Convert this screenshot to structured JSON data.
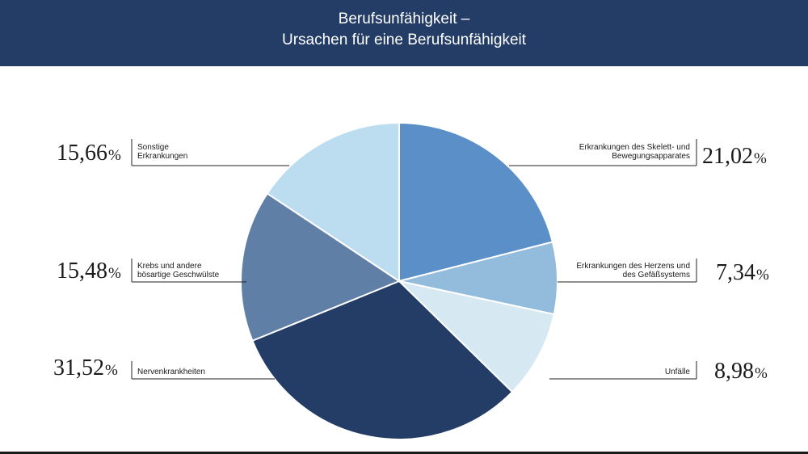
{
  "header": {
    "title_line1": "Berufsunfähigkeit –",
    "title_line2": "Ursachen für eine Berufsunfähigkeit"
  },
  "colors": {
    "header_bg": "#233d66",
    "skelett": "#5b8fc7",
    "herz": "#93bbdc",
    "unfaelle": "#d6e8f2",
    "nerven": "#233d66",
    "krebs": "#5f7fa6",
    "sonstige": "#bcdcef"
  },
  "chart_data": {
    "type": "pie",
    "title": "Berufsunfähigkeit – Ursachen für eine Berufsunfähigkeit",
    "start_angle_deg": 0,
    "direction": "clockwise",
    "slices": [
      {
        "key": "skelett",
        "label_line1": "Erkrankungen des Skelett- und",
        "label_line2": "Bewegungsapparates",
        "value": 21.02,
        "value_text": "21,02",
        "unit": "%"
      },
      {
        "key": "herz",
        "label_line1": "Erkrankungen des Herzens und",
        "label_line2": "des Gefäßsystems",
        "value": 7.34,
        "value_text": "7,34",
        "unit": "%"
      },
      {
        "key": "unfaelle",
        "label_line1": "Unfälle",
        "label_line2": "",
        "value": 8.98,
        "value_text": "8,98",
        "unit": "%"
      },
      {
        "key": "nerven",
        "label_line1": "Nervenkrankheiten",
        "label_line2": "",
        "value": 31.52,
        "value_text": "31,52",
        "unit": "%"
      },
      {
        "key": "krebs",
        "label_line1": "Krebs und andere",
        "label_line2": "bösartige Geschwülste",
        "value": 15.48,
        "value_text": "15,48",
        "unit": "%"
      },
      {
        "key": "sonstige",
        "label_line1": "Sonstige",
        "label_line2": "Erkrankungen",
        "value": 15.66,
        "value_text": "15,66",
        "unit": "%"
      }
    ]
  }
}
